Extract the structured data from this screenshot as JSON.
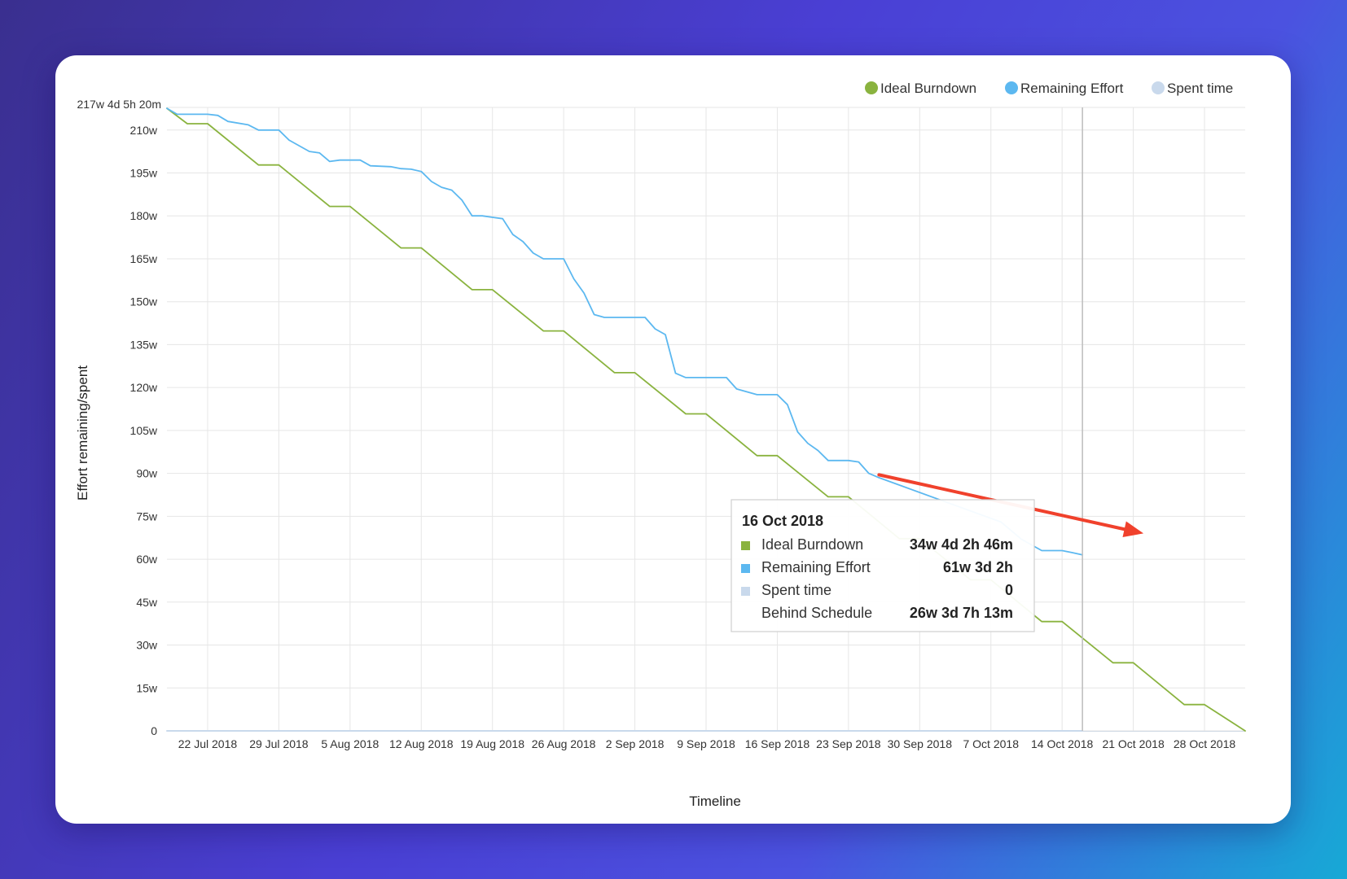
{
  "chart_data": {
    "type": "line",
    "title": "",
    "xlabel": "Timeline",
    "ylabel": "Effort remaining/spent",
    "ylim": [
      0,
      217.9
    ],
    "y_unit": "weeks",
    "y_max_label": "217w 4d 5h 20m",
    "y_ticks": [
      {
        "value": 0,
        "label": "0"
      },
      {
        "value": 15,
        "label": "15w"
      },
      {
        "value": 30,
        "label": "30w"
      },
      {
        "value": 45,
        "label": "45w"
      },
      {
        "value": 60,
        "label": "60w"
      },
      {
        "value": 75,
        "label": "75w"
      },
      {
        "value": 90,
        "label": "90w"
      },
      {
        "value": 105,
        "label": "105w"
      },
      {
        "value": 120,
        "label": "120w"
      },
      {
        "value": 135,
        "label": "135w"
      },
      {
        "value": 150,
        "label": "150w"
      },
      {
        "value": 165,
        "label": "165w"
      },
      {
        "value": 180,
        "label": "180w"
      },
      {
        "value": 195,
        "label": "195w"
      },
      {
        "value": 210,
        "label": "210w"
      }
    ],
    "x_range": [
      "2018-07-18",
      "2018-11-01"
    ],
    "x_ticks": [
      {
        "date": "2018-07-22",
        "label": "22 Jul 2018"
      },
      {
        "date": "2018-07-29",
        "label": "29 Jul 2018"
      },
      {
        "date": "2018-08-05",
        "label": "5 Aug 2018"
      },
      {
        "date": "2018-08-12",
        "label": "12 Aug 2018"
      },
      {
        "date": "2018-08-19",
        "label": "19 Aug 2018"
      },
      {
        "date": "2018-08-26",
        "label": "26 Aug 2018"
      },
      {
        "date": "2018-09-02",
        "label": "2 Sep 2018"
      },
      {
        "date": "2018-09-09",
        "label": "9 Sep 2018"
      },
      {
        "date": "2018-09-16",
        "label": "16 Sep 2018"
      },
      {
        "date": "2018-09-23",
        "label": "23 Sep 2018"
      },
      {
        "date": "2018-09-30",
        "label": "30 Sep 2018"
      },
      {
        "date": "2018-10-07",
        "label": "7 Oct 2018"
      },
      {
        "date": "2018-10-14",
        "label": "14 Oct 2018"
      },
      {
        "date": "2018-10-21",
        "label": "21 Oct 2018"
      },
      {
        "date": "2018-10-28",
        "label": "28 Oct 2018"
      }
    ],
    "grid": true,
    "legend_position": "top-right",
    "legend": [
      {
        "name": "Ideal Burndown",
        "color": "#8ab33f"
      },
      {
        "name": "Remaining Effort",
        "color": "#5cb8f0"
      },
      {
        "name": "Spent time",
        "color": "#c9d9ec"
      }
    ],
    "series": [
      {
        "name": "Ideal Burndown",
        "color": "#8ab33f",
        "points": [
          [
            "2018-07-18",
            217.6
          ],
          [
            "2018-07-20",
            212.2
          ],
          [
            "2018-07-22",
            212.2
          ],
          [
            "2018-07-27",
            197.8
          ],
          [
            "2018-07-29",
            197.8
          ],
          [
            "2018-08-03",
            183.3
          ],
          [
            "2018-08-05",
            183.3
          ],
          [
            "2018-08-10",
            168.8
          ],
          [
            "2018-08-12",
            168.8
          ],
          [
            "2018-08-17",
            154.2
          ],
          [
            "2018-08-19",
            154.2
          ],
          [
            "2018-08-24",
            139.8
          ],
          [
            "2018-08-26",
            139.8
          ],
          [
            "2018-08-31",
            125.2
          ],
          [
            "2018-09-02",
            125.2
          ],
          [
            "2018-09-07",
            110.8
          ],
          [
            "2018-09-09",
            110.8
          ],
          [
            "2018-09-14",
            96.2
          ],
          [
            "2018-09-16",
            96.2
          ],
          [
            "2018-09-21",
            81.8
          ],
          [
            "2018-09-23",
            81.8
          ],
          [
            "2018-09-28",
            67.2
          ],
          [
            "2018-09-30",
            67.2
          ],
          [
            "2018-10-05",
            52.8
          ],
          [
            "2018-10-07",
            52.8
          ],
          [
            "2018-10-12",
            38.2
          ],
          [
            "2018-10-14",
            38.2
          ],
          [
            "2018-10-19",
            23.8
          ],
          [
            "2018-10-21",
            23.8
          ],
          [
            "2018-10-26",
            9.2
          ],
          [
            "2018-10-28",
            9.2
          ],
          [
            "2018-11-01",
            0
          ]
        ]
      },
      {
        "name": "Remaining Effort",
        "color": "#5cb8f0",
        "points": [
          [
            "2018-07-18",
            217.6
          ],
          [
            "2018-07-19",
            215.5
          ],
          [
            "2018-07-22",
            215.5
          ],
          [
            "2018-07-23",
            215.1
          ],
          [
            "2018-07-24",
            213.0
          ],
          [
            "2018-07-26",
            211.8
          ],
          [
            "2018-07-27",
            210.0
          ],
          [
            "2018-07-29",
            210.0
          ],
          [
            "2018-07-30",
            206.5
          ],
          [
            "2018-08-01",
            202.5
          ],
          [
            "2018-08-02",
            202.0
          ],
          [
            "2018-08-03",
            199.0
          ],
          [
            "2018-08-04",
            199.5
          ],
          [
            "2018-08-06",
            199.5
          ],
          [
            "2018-08-07",
            197.5
          ],
          [
            "2018-08-09",
            197.2
          ],
          [
            "2018-08-10",
            196.5
          ],
          [
            "2018-08-11",
            196.3
          ],
          [
            "2018-08-12",
            195.5
          ],
          [
            "2018-08-13",
            192.0
          ],
          [
            "2018-08-14",
            190.0
          ],
          [
            "2018-08-15",
            189.0
          ],
          [
            "2018-08-16",
            185.5
          ],
          [
            "2018-08-17",
            180.0
          ],
          [
            "2018-08-18",
            180.0
          ],
          [
            "2018-08-19",
            179.5
          ],
          [
            "2018-08-20",
            179.0
          ],
          [
            "2018-08-21",
            173.5
          ],
          [
            "2018-08-22",
            171.0
          ],
          [
            "2018-08-23",
            167.0
          ],
          [
            "2018-08-24",
            165.0
          ],
          [
            "2018-08-26",
            165.0
          ],
          [
            "2018-08-27",
            158.0
          ],
          [
            "2018-08-28",
            153.0
          ],
          [
            "2018-08-29",
            145.5
          ],
          [
            "2018-08-30",
            144.5
          ],
          [
            "2018-09-03",
            144.5
          ],
          [
            "2018-09-04",
            140.5
          ],
          [
            "2018-09-05",
            138.5
          ],
          [
            "2018-09-06",
            125.0
          ],
          [
            "2018-09-07",
            123.5
          ],
          [
            "2018-09-11",
            123.5
          ],
          [
            "2018-09-12",
            119.5
          ],
          [
            "2018-09-13",
            118.5
          ],
          [
            "2018-09-14",
            117.5
          ],
          [
            "2018-09-16",
            117.5
          ],
          [
            "2018-09-17",
            114.0
          ],
          [
            "2018-09-18",
            104.5
          ],
          [
            "2018-09-19",
            100.5
          ],
          [
            "2018-09-20",
            98.0
          ],
          [
            "2018-09-21",
            94.5
          ],
          [
            "2018-09-23",
            94.5
          ],
          [
            "2018-09-24",
            94.0
          ],
          [
            "2018-09-25",
            90.0
          ],
          [
            "2018-09-26",
            88.5
          ],
          [
            "2018-10-08",
            73.0
          ],
          [
            "2018-10-09",
            70.0
          ],
          [
            "2018-10-10",
            67.0
          ],
          [
            "2018-10-11",
            65.0
          ],
          [
            "2018-10-12",
            63.0
          ],
          [
            "2018-10-14",
            63.0
          ],
          [
            "2018-10-15",
            62.3
          ],
          [
            "2018-10-16",
            61.5
          ]
        ]
      },
      {
        "name": "Spent time",
        "color": "#c9d9ec",
        "points": [
          [
            "2018-07-18",
            0
          ],
          [
            "2018-10-16",
            0
          ]
        ]
      }
    ],
    "hover_date": "2018-10-16",
    "tooltip": {
      "title": "16 Oct 2018",
      "rows": [
        {
          "label": "Ideal Burndown",
          "value": "34w 4d 2h 46m",
          "color": "#8ab33f"
        },
        {
          "label": "Remaining Effort",
          "value": "61w 3d 2h",
          "color": "#5cb8f0"
        },
        {
          "label": "Spent time",
          "value": "0",
          "color": "#c9d9ec"
        },
        {
          "label": "Behind Schedule",
          "value": "26w 3d 7h 13m",
          "color": ""
        }
      ]
    },
    "annotation": {
      "type": "arrow",
      "color": "#f0412c",
      "from": [
        "2018-09-26",
        89.5
      ],
      "to": [
        "2018-10-22",
        69.0
      ]
    }
  }
}
